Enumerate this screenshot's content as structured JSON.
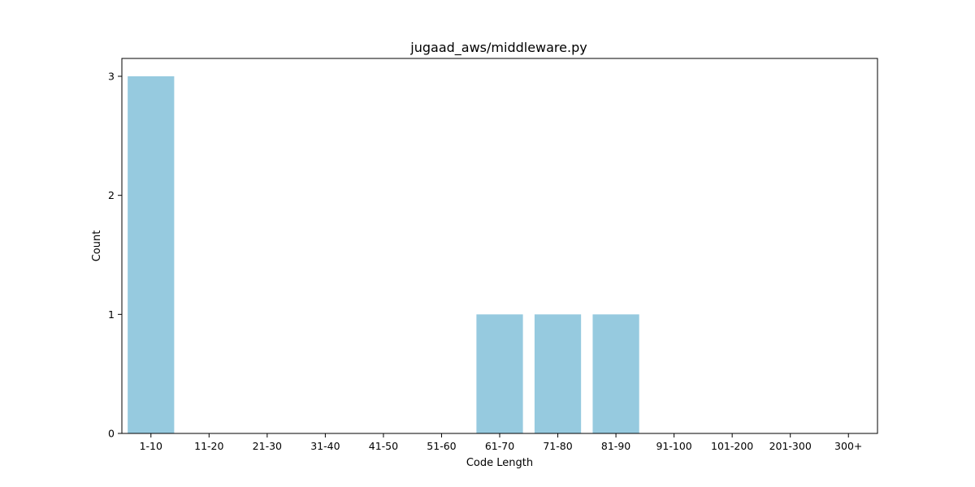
{
  "chart_data": {
    "type": "bar",
    "title": "jugaad_aws/middleware.py",
    "xlabel": "Code Length",
    "ylabel": "Count",
    "categories": [
      "1-10",
      "11-20",
      "21-30",
      "31-40",
      "41-50",
      "51-60",
      "61-70",
      "71-80",
      "81-90",
      "91-100",
      "101-200",
      "201-300",
      "300+"
    ],
    "values": [
      3,
      0,
      0,
      0,
      0,
      0,
      1,
      1,
      1,
      0,
      0,
      0,
      0
    ],
    "yticks": [
      "0",
      "1",
      "2",
      "3"
    ],
    "ylim": [
      0,
      3.15
    ],
    "grid": false,
    "legend": "none",
    "bar_color": "#96cadf",
    "axis_color": "#000000"
  }
}
